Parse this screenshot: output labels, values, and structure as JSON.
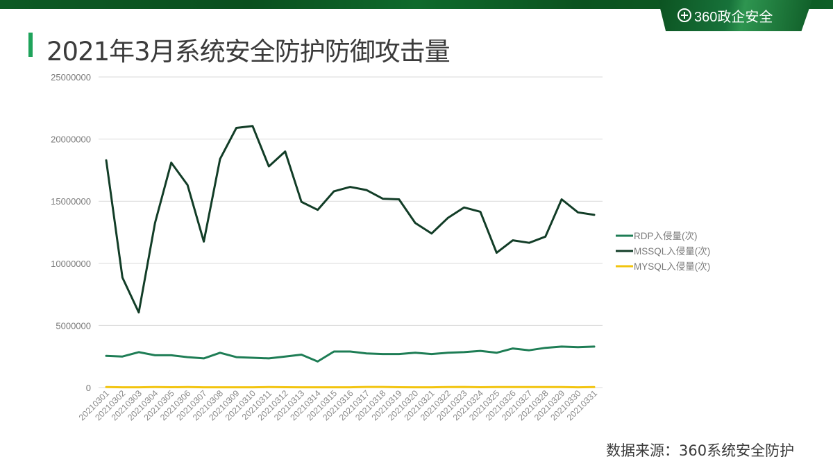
{
  "header": {
    "brand_logo_text": "360政企安全",
    "title": "2021年3月系统安全防护防御攻击量"
  },
  "footer": {
    "source": "数据来源：360系统安全防护"
  },
  "chart_data": {
    "type": "line",
    "title": "2021年3月系统安全防护防御攻击量",
    "xlabel": "",
    "ylabel": "",
    "ylim": [
      0,
      25000000
    ],
    "yticks": [
      0,
      5000000,
      10000000,
      15000000,
      20000000,
      25000000
    ],
    "grid": true,
    "legend_position": "right",
    "categories": [
      "20210301",
      "20210302",
      "20210303",
      "20210304",
      "20210305",
      "20210306",
      "20210307",
      "20210308",
      "20210309",
      "20210310",
      "20210311",
      "20210312",
      "20210313",
      "20210314",
      "20210315",
      "20210316",
      "20210317",
      "20210318",
      "20210319",
      "20210320",
      "20210321",
      "20210322",
      "20210323",
      "20210324",
      "20210325",
      "20210326",
      "20210327",
      "20210328",
      "20210329",
      "20210330",
      "20210331"
    ],
    "series": [
      {
        "name": "RDP入侵量(次)",
        "color": "#1e7d55",
        "values": [
          2550000,
          2500000,
          2850000,
          2600000,
          2600000,
          2450000,
          2350000,
          2800000,
          2450000,
          2400000,
          2350000,
          2500000,
          2650000,
          2100000,
          2900000,
          2900000,
          2750000,
          2700000,
          2700000,
          2800000,
          2700000,
          2800000,
          2850000,
          2950000,
          2800000,
          3150000,
          3000000,
          3200000,
          3300000,
          3250000,
          3300000
        ]
      },
      {
        "name": "MSSQL入侵量(次)",
        "color": "#123d27",
        "values": [
          18300000,
          8850000,
          6050000,
          13250000,
          18100000,
          16300000,
          11750000,
          18400000,
          20900000,
          21050000,
          17800000,
          19000000,
          14950000,
          14300000,
          15800000,
          16150000,
          15900000,
          15200000,
          15150000,
          13250000,
          12400000,
          13650000,
          14500000,
          14150000,
          10850000,
          11850000,
          11650000,
          12150000,
          15150000,
          14100000,
          13900000
        ]
      },
      {
        "name": "MYSQL入侵量(次)",
        "color": "#f2c40f",
        "values": [
          40000,
          20000,
          20000,
          40000,
          30000,
          40000,
          20000,
          20000,
          20000,
          20000,
          40000,
          30000,
          20000,
          20000,
          20000,
          20000,
          50000,
          50000,
          30000,
          20000,
          20000,
          40000,
          50000,
          30000,
          40000,
          40000,
          40000,
          40000,
          40000,
          20000,
          40000
        ]
      }
    ]
  }
}
